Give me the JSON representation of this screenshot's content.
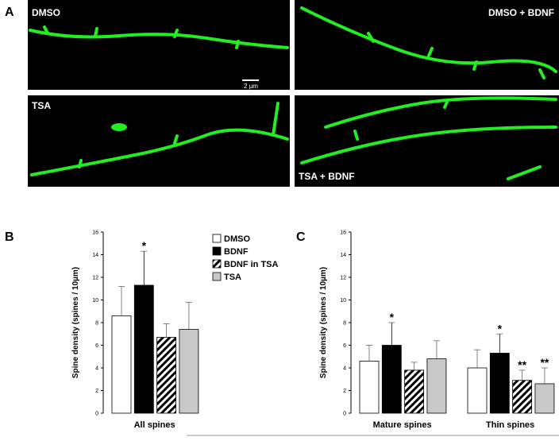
{
  "panels": [
    "A",
    "B",
    "C"
  ],
  "images": [
    {
      "label": "DMSO"
    },
    {
      "label": "DMSO + BDNF"
    },
    {
      "label": "TSA"
    },
    {
      "label": "TSA + BDNF"
    }
  ],
  "scale_bar": "2 µm",
  "chart_data": [
    {
      "type": "bar",
      "ylabel": "Spine density (spines / 10µm)",
      "categories": [
        "All spines"
      ],
      "ylim": [
        0,
        16
      ],
      "yticks": [
        0,
        2,
        4,
        6,
        8,
        10,
        12,
        14,
        16
      ],
      "legend": "right",
      "series": [
        {
          "name": "DMSO",
          "color": "#ffffff",
          "values": [
            8.6
          ],
          "errors": [
            2.6
          ],
          "markers": [
            null
          ]
        },
        {
          "name": "BDNF",
          "color": "#000000",
          "values": [
            11.3
          ],
          "errors": [
            3.0
          ],
          "markers": [
            "*"
          ]
        },
        {
          "name": "BDNF in TSA",
          "color": "#ffffff",
          "pattern": "hatch",
          "values": [
            6.7
          ],
          "errors": [
            1.2
          ],
          "markers": [
            null
          ]
        },
        {
          "name": "TSA",
          "color": "#c8c8c8",
          "values": [
            7.4
          ],
          "errors": [
            2.4
          ],
          "markers": [
            null
          ]
        }
      ]
    },
    {
      "type": "bar",
      "ylabel": "Spine density (spines / 10µm)",
      "categories": [
        "Mature spines",
        "Thin spines"
      ],
      "ylim": [
        0,
        16
      ],
      "yticks": [
        0,
        2,
        4,
        6,
        8,
        10,
        12,
        14,
        16
      ],
      "legend": "none",
      "series": [
        {
          "name": "DMSO",
          "color": "#ffffff",
          "values": [
            4.6,
            4.0
          ],
          "errors": [
            1.4,
            1.6
          ],
          "markers": [
            null,
            null
          ]
        },
        {
          "name": "BDNF",
          "color": "#000000",
          "values": [
            6.0,
            5.3
          ],
          "errors": [
            2.0,
            1.7
          ],
          "markers": [
            "*",
            "*"
          ]
        },
        {
          "name": "BDNF in TSA",
          "color": "#ffffff",
          "pattern": "hatch",
          "values": [
            3.8,
            2.9
          ],
          "errors": [
            0.7,
            0.9
          ],
          "markers": [
            null,
            "**"
          ]
        },
        {
          "name": "TSA",
          "color": "#c8c8c8",
          "values": [
            4.8,
            2.6
          ],
          "errors": [
            1.6,
            1.4
          ],
          "markers": [
            null,
            "**"
          ]
        }
      ]
    }
  ]
}
